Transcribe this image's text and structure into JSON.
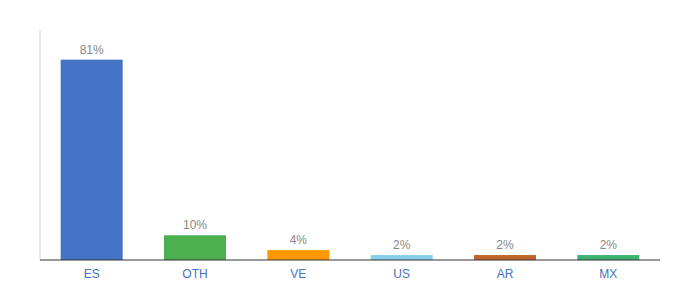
{
  "chart_data": {
    "type": "bar",
    "categories": [
      "ES",
      "OTH",
      "VE",
      "US",
      "AR",
      "MX"
    ],
    "values": [
      81,
      10,
      4,
      2,
      2,
      2
    ],
    "value_labels": [
      "81%",
      "10%",
      "4%",
      "2%",
      "2%",
      "2%"
    ],
    "colors": [
      "#4472C4",
      "#4CAF50",
      "#FF9800",
      "#87CEEB",
      "#C0622A",
      "#3CB371"
    ],
    "ylim": [
      0,
      93
    ],
    "data_labels": true,
    "tick_labels": "x",
    "grid": false
  }
}
